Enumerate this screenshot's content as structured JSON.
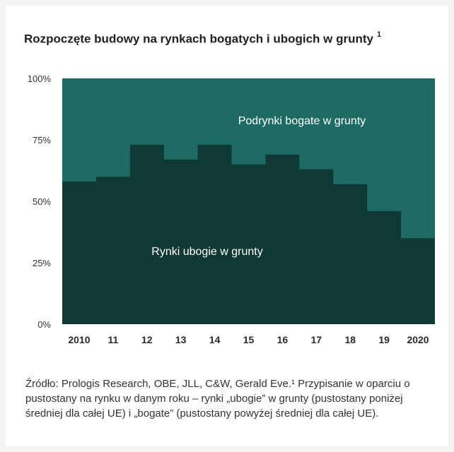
{
  "chart_data": {
    "type": "area",
    "title": "Rozpoczęte budowy na rynkach bogatych i ubogich w grunty",
    "title_footnote": "1",
    "categories": [
      "2010",
      "11",
      "12",
      "13",
      "14",
      "15",
      "16",
      "17",
      "18",
      "19",
      "2020"
    ],
    "series": [
      {
        "name": "Rynki ubogie w grunty",
        "values": [
          58,
          60,
          73,
          67,
          73,
          65,
          69,
          63,
          57,
          46,
          35
        ]
      },
      {
        "name": "Podrynki bogate w grunty",
        "values": [
          42,
          40,
          27,
          33,
          27,
          35,
          31,
          37,
          43,
          54,
          65
        ]
      }
    ],
    "stacked": true,
    "y_ticks": [
      "0%",
      "25%",
      "50%",
      "75%",
      "100%"
    ],
    "y_tick_values": [
      0,
      25,
      50,
      75,
      100
    ],
    "ylim": [
      0,
      100
    ],
    "xlabel": "",
    "ylabel": "",
    "grid": false,
    "colors": {
      "poor": "#0e3934",
      "rich": "#1d6b62",
      "text": "#ffffff"
    }
  },
  "source_text": "Źródło: Prologis Research, OBE, JLL, C&W, Gerald Eve.¹ Przypisanie w oparciu o pustostany na rynku w danym roku – rynki „ubogie” w grunty (pustostany poniżej średniej dla całej UE) i „bogate” (pustostany powyżej średniej dla całej UE)."
}
